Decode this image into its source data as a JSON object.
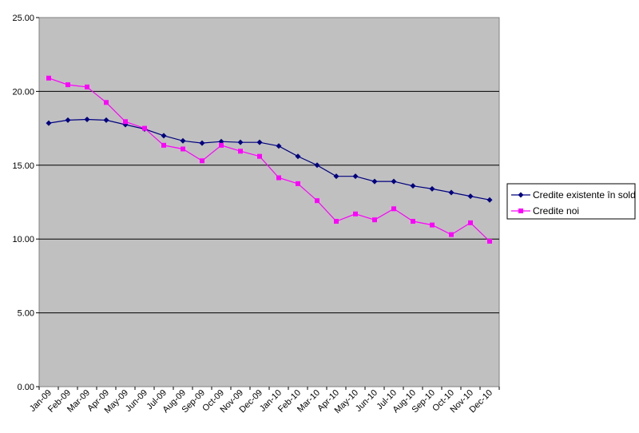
{
  "chart_data": {
    "type": "line",
    "categories": [
      "Jan-09",
      "Feb-09",
      "Mar-09",
      "Apr-09",
      "May-09",
      "Jun-09",
      "Jul-09",
      "Aug-09",
      "Sep-09",
      "Oct-09",
      "Nov-09",
      "Dec-09",
      "Jan-10",
      "Feb-10",
      "Mar-10",
      "Apr-10",
      "May-10",
      "Jun-10",
      "Jul-10",
      "Aug-10",
      "Sep-10",
      "Oct-10",
      "Nov-10",
      "Dec-10"
    ],
    "series": [
      {
        "name": "Credite existente în sold",
        "color": "#000080",
        "marker": "diamond",
        "values": [
          17.85,
          18.05,
          18.1,
          18.05,
          17.75,
          17.45,
          17.0,
          16.65,
          16.5,
          16.6,
          16.55,
          16.55,
          16.3,
          15.6,
          15.0,
          14.25,
          14.25,
          13.9,
          13.9,
          13.6,
          13.4,
          13.15,
          12.9,
          12.65
        ]
      },
      {
        "name": "Credite noi",
        "color": "#FF00FF",
        "marker": "square",
        "values": [
          20.9,
          20.45,
          20.3,
          19.25,
          17.95,
          17.5,
          16.35,
          16.1,
          15.3,
          16.35,
          15.95,
          15.6,
          14.15,
          13.75,
          12.6,
          11.2,
          11.7,
          11.3,
          12.05,
          11.2,
          10.95,
          10.3,
          11.1,
          9.85
        ]
      }
    ],
    "y_ticks": [
      "0.00",
      "5.00",
      "10.00",
      "15.00",
      "20.00",
      "25.00"
    ],
    "ylim": [
      0,
      25
    ],
    "grid": "horizontal",
    "legend": "right",
    "plot_background": "#C0C0C0",
    "title": "",
    "xlabel": "",
    "ylabel": ""
  }
}
